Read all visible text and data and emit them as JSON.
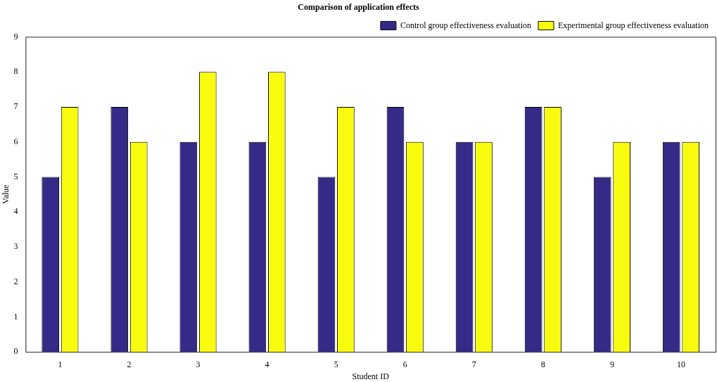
{
  "chart_data": {
    "type": "bar",
    "title": "Comparison of application effects",
    "xlabel": "Student ID",
    "ylabel": "Value",
    "categories": [
      "1",
      "2",
      "3",
      "4",
      "5",
      "6",
      "7",
      "8",
      "9",
      "10"
    ],
    "series": [
      {
        "name": "Control group effectiveness evaluation",
        "color": "#352a87",
        "values": [
          5,
          7,
          6,
          6,
          5,
          7,
          6,
          7,
          5,
          6
        ]
      },
      {
        "name": "Experimental group effectiveness evaluation",
        "color": "#f9fb0e",
        "values": [
          7,
          6,
          8,
          8,
          7,
          6,
          6,
          7,
          6,
          6
        ]
      }
    ],
    "ylim": [
      0,
      9
    ],
    "yticks": [
      0,
      1,
      2,
      3,
      4,
      5,
      6,
      7,
      8,
      9
    ],
    "grid": false,
    "legend": "top right"
  }
}
